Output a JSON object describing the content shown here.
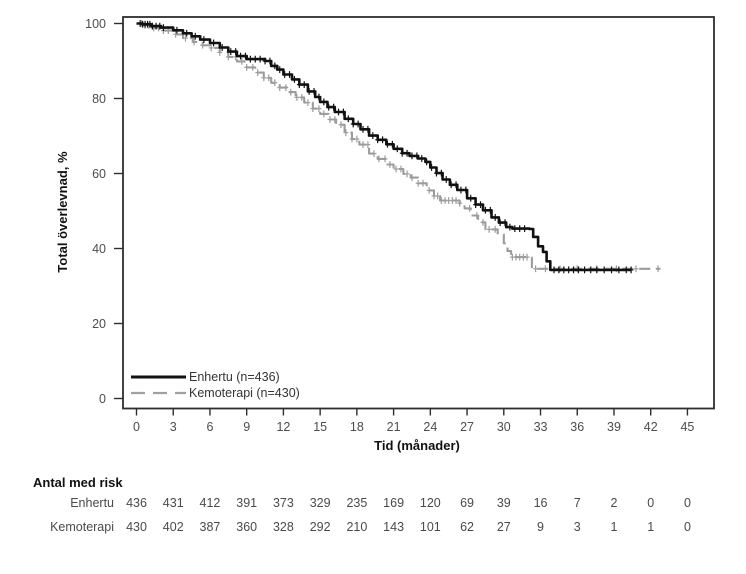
{
  "chart_data": {
    "type": "line",
    "subtype": "kaplan-meier-step",
    "title": "",
    "xlabel": "Tid (månader)",
    "ylabel": "Total överlevnad, %",
    "xlim": [
      0,
      45
    ],
    "ylim": [
      0,
      100
    ],
    "x_ticks": [
      0,
      3,
      6,
      9,
      12,
      15,
      18,
      21,
      24,
      27,
      30,
      33,
      36,
      39,
      42,
      45
    ],
    "y_ticks": [
      0,
      20,
      40,
      60,
      80,
      100
    ],
    "grid": false,
    "legend_position": "bottom-left-inside",
    "series": [
      {
        "name": "Enhertu (n=436)",
        "color": "#111111",
        "style": "solid",
        "points": [
          [
            0,
            100
          ],
          [
            0.5,
            99.8
          ],
          [
            1.2,
            99.3
          ],
          [
            2,
            98.9
          ],
          [
            3,
            98.2
          ],
          [
            3.8,
            97.4
          ],
          [
            4.5,
            96.6
          ],
          [
            5.2,
            95.7
          ],
          [
            6,
            94.8
          ],
          [
            6.8,
            93.6
          ],
          [
            7.5,
            92.5
          ],
          [
            8.2,
            91.3
          ],
          [
            9,
            90.5
          ],
          [
            10.5,
            90.0
          ],
          [
            11,
            88.7
          ],
          [
            11.5,
            87.7
          ],
          [
            12,
            86.4
          ],
          [
            12.7,
            85.1
          ],
          [
            13.3,
            83.7
          ],
          [
            14,
            81.9
          ],
          [
            14.6,
            80.4
          ],
          [
            15,
            79.1
          ],
          [
            15.6,
            77.7
          ],
          [
            16.2,
            76.4
          ],
          [
            17,
            74.6
          ],
          [
            17.7,
            73.2
          ],
          [
            18.3,
            71.8
          ],
          [
            19,
            70.1
          ],
          [
            19.7,
            69.0
          ],
          [
            20.4,
            67.8
          ],
          [
            21,
            66.6
          ],
          [
            21.7,
            65.4
          ],
          [
            22.3,
            64.7
          ],
          [
            23,
            64.0
          ],
          [
            23.6,
            63.1
          ],
          [
            24,
            61.6
          ],
          [
            24.5,
            60.1
          ],
          [
            25,
            58.4
          ],
          [
            25.6,
            57.0
          ],
          [
            26.2,
            55.6
          ],
          [
            27,
            53.4
          ],
          [
            27.7,
            51.7
          ],
          [
            28.3,
            50.2
          ],
          [
            29,
            48.3
          ],
          [
            29.6,
            46.9
          ],
          [
            30.2,
            45.7
          ],
          [
            30.7,
            45.3
          ],
          [
            32.1,
            45.2
          ],
          [
            32.4,
            43.1
          ],
          [
            32.8,
            40.6
          ],
          [
            33.2,
            39.1
          ],
          [
            33.5,
            36.6
          ],
          [
            33.8,
            34.3
          ],
          [
            40.4,
            34.3
          ]
        ],
        "censor_times": [
          0.3,
          0.5,
          0.7,
          0.9,
          1.1,
          1.3,
          1.6,
          1.9,
          2.2,
          3.3,
          4.1,
          4.8,
          5.5,
          6.3,
          7.0,
          7.7,
          8.1,
          8.5,
          8.9,
          9.3,
          9.7,
          10.1,
          10.5,
          10.9,
          11.3,
          11.7,
          12.1,
          12.5,
          12.9,
          13.3,
          13.7,
          14.1,
          14.5,
          14.9,
          15.3,
          15.7,
          16.1,
          16.5,
          16.9,
          17.3,
          17.7,
          18.1,
          18.5,
          18.9,
          19.3,
          19.7,
          20.1,
          20.5,
          20.9,
          21.3,
          21.7,
          22.1,
          22.5,
          22.9,
          23.3,
          23.7,
          24.1,
          24.5,
          24.9,
          25.3,
          25.7,
          26.1,
          26.5,
          26.9,
          27.3,
          27.7,
          28.1,
          28.5,
          28.9,
          29.3,
          29.7,
          30.1,
          30.5,
          30.9,
          31.3,
          31.7,
          34.1,
          34.5,
          34.9,
          35.3,
          35.7,
          36.1,
          36.6,
          37.1,
          37.6,
          38.2,
          38.8,
          39.4,
          40.0,
          40.4
        ]
      },
      {
        "name": "Kemoterapi (n=430)",
        "color": "#9c9c9c",
        "style": "dashed",
        "points": [
          [
            0,
            100
          ],
          [
            0.6,
            99.5
          ],
          [
            1.3,
            98.8
          ],
          [
            2,
            98.1
          ],
          [
            3,
            97.1
          ],
          [
            3.8,
            96.1
          ],
          [
            4.6,
            95.1
          ],
          [
            5.4,
            94.2
          ],
          [
            6,
            93.5
          ],
          [
            6.8,
            92.3
          ],
          [
            7.5,
            91.1
          ],
          [
            8.2,
            89.9
          ],
          [
            9,
            88.3
          ],
          [
            9.7,
            86.9
          ],
          [
            10.4,
            85.5
          ],
          [
            11,
            84.2
          ],
          [
            11.7,
            82.9
          ],
          [
            12.3,
            81.7
          ],
          [
            13,
            80.3
          ],
          [
            13.7,
            78.9
          ],
          [
            14.4,
            77.3
          ],
          [
            15,
            75.9
          ],
          [
            15.7,
            74.4
          ],
          [
            16.3,
            73.0
          ],
          [
            17,
            70.9
          ],
          [
            17.6,
            69.2
          ],
          [
            18.2,
            67.7
          ],
          [
            19,
            65.3
          ],
          [
            19.7,
            63.9
          ],
          [
            20.4,
            62.4
          ],
          [
            21,
            61.2
          ],
          [
            21.8,
            59.9
          ],
          [
            22.4,
            58.9
          ],
          [
            23,
            57.4
          ],
          [
            23.7,
            55.5
          ],
          [
            24.3,
            54.0
          ],
          [
            24.8,
            52.8
          ],
          [
            26.4,
            52.1
          ],
          [
            26.8,
            50.7
          ],
          [
            27.3,
            48.8
          ],
          [
            27.9,
            47.0
          ],
          [
            28.5,
            45.1
          ],
          [
            29.5,
            43.8
          ],
          [
            30,
            41.4
          ],
          [
            30.3,
            39.3
          ],
          [
            30.6,
            37.7
          ],
          [
            32,
            37.6
          ],
          [
            32.3,
            34.6
          ],
          [
            42.8,
            34.6
          ]
        ],
        "censor_times": [
          0.4,
          0.7,
          1.0,
          1.4,
          1.8,
          2.2,
          2.6,
          3.2,
          4.0,
          4.7,
          5.4,
          6.1,
          6.8,
          7.5,
          8.1,
          8.6,
          9.0,
          9.5,
          9.9,
          10.4,
          10.8,
          11.3,
          11.7,
          12.2,
          12.6,
          13.1,
          13.5,
          14.0,
          14.4,
          14.9,
          15.3,
          15.8,
          16.2,
          16.7,
          17.1,
          17.6,
          18.0,
          18.5,
          18.9,
          19.4,
          19.8,
          20.3,
          20.7,
          21.2,
          21.6,
          22.1,
          22.5,
          23.0,
          23.4,
          23.9,
          24.3,
          24.6,
          24.9,
          25.2,
          25.5,
          25.8,
          26.1,
          26.4,
          27.2,
          27.8,
          28.3,
          28.8,
          29.3,
          30.7,
          31.0,
          31.3,
          31.6,
          31.9,
          32.6,
          33.4,
          34.6,
          36.0,
          37.6,
          39.2,
          40.8,
          42.6
        ]
      }
    ]
  },
  "legend": {
    "items": [
      {
        "label": "Enhertu (n=436)",
        "line": "solid-black"
      },
      {
        "label": "Kemoterapi (n=430)",
        "line": "dashed-gray"
      }
    ]
  },
  "risk_table": {
    "title": "Antal med risk",
    "time_points": [
      0,
      3,
      6,
      9,
      12,
      15,
      18,
      21,
      24,
      27,
      30,
      33,
      36,
      39,
      42,
      45
    ],
    "rows": [
      {
        "label": "Enhertu",
        "values": [
          436,
          431,
          412,
          391,
          373,
          329,
          235,
          169,
          120,
          69,
          39,
          16,
          7,
          2,
          0,
          0
        ]
      },
      {
        "label": "Kemoterapi",
        "values": [
          430,
          402,
          387,
          360,
          328,
          292,
          210,
          143,
          101,
          62,
          27,
          9,
          3,
          1,
          1,
          0
        ]
      }
    ]
  },
  "colors": {
    "background": "#ffffff",
    "axis": "#2e2e2e",
    "tick_text": "#4d4d4d",
    "series_enhertu": "#111111",
    "series_kemoterapi": "#9c9c9c"
  }
}
